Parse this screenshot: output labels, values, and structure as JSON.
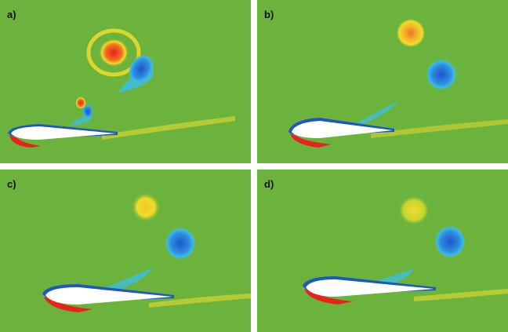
{
  "panels": [
    {
      "label": "a)"
    },
    {
      "label": "b)"
    },
    {
      "label": "c)"
    },
    {
      "label": "d)"
    }
  ],
  "colors": {
    "background_field": "#6cb33e",
    "positive_vortex": "#e8231e",
    "positive_vortex_weak": "#f2dc2a",
    "negative_vortex": "#1c57c8",
    "negative_vortex_weak": "#3cbde6",
    "airfoil": "#ffffff"
  }
}
